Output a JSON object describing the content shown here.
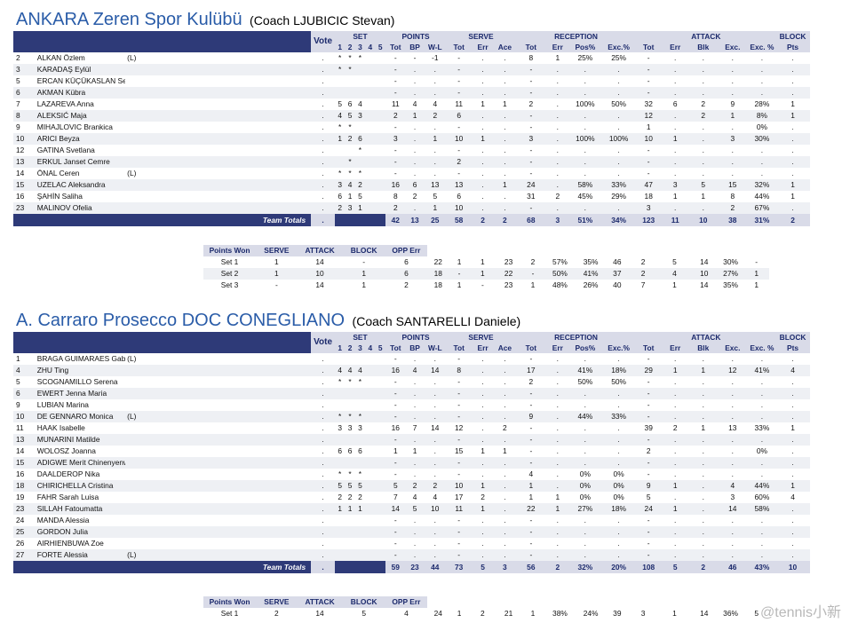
{
  "header_labels": {
    "vote": "Vote",
    "groups": [
      "SET",
      "POINTS",
      "SERVE",
      "RECEPTION",
      "ATTACK",
      "BLOCK"
    ],
    "sub": [
      "1",
      "2",
      "3",
      "4",
      "5",
      "Tot",
      "BP",
      "W-L",
      "Tot",
      "Err",
      "Ace",
      "Tot",
      "Err",
      "Pos%",
      "Exc.%",
      "Tot",
      "Err",
      "Blk",
      "Exc.",
      "Exc. %",
      "Pts"
    ],
    "team_totals": "Team Totals",
    "sets_header": [
      "Points Won",
      "SERVE",
      "ATTACK",
      "BLOCK",
      "OPP Err"
    ]
  },
  "teams": [
    {
      "name": "ANKARA Zeren Spor Kulübü",
      "coach": "(Coach LJUBICIC Stevan)",
      "players": [
        {
          "no": "2",
          "name": "ALKAN Özlem",
          "role": "(L)",
          "vote": ".",
          "c": [
            "*",
            "*",
            "*",
            "",
            "",
            "-",
            "-",
            "-1",
            "-",
            ".",
            ".",
            "8",
            "1",
            "25%",
            "25%",
            "-",
            ".",
            ".",
            ".",
            ".",
            "."
          ]
        },
        {
          "no": "3",
          "name": "KARADAŞ Eylül",
          "role": "",
          "vote": ".",
          "c": [
            "*",
            "*",
            "",
            "",
            "",
            "-",
            ".",
            ".",
            "-",
            ".",
            ".",
            "-",
            ".",
            ".",
            ".",
            "-",
            ".",
            ".",
            ".",
            ".",
            "."
          ]
        },
        {
          "no": "5",
          "name": "ERCAN KÜÇÜKASLAN Seyma",
          "role": "",
          "vote": ".",
          "c": [
            "",
            "",
            "",
            "",
            "",
            "-",
            ".",
            ".",
            "-",
            ".",
            ".",
            "-",
            ".",
            ".",
            ".",
            "-",
            ".",
            ".",
            ".",
            ".",
            "."
          ]
        },
        {
          "no": "6",
          "name": "AKMAN Kübra",
          "role": "",
          "vote": ".",
          "c": [
            "",
            "",
            "",
            "",
            "",
            "-",
            ".",
            ".",
            "-",
            ".",
            ".",
            "-",
            ".",
            ".",
            ".",
            "-",
            ".",
            ".",
            ".",
            ".",
            "."
          ]
        },
        {
          "no": "7",
          "name": "LAZAREVA Anna",
          "role": "",
          "vote": ".",
          "c": [
            "5",
            "6",
            "4",
            "",
            "",
            "11",
            "4",
            "4",
            "11",
            "1",
            "1",
            "2",
            ".",
            "100%",
            "50%",
            "32",
            "6",
            "2",
            "9",
            "28%",
            "1"
          ]
        },
        {
          "no": "8",
          "name": "ALEKSIĆ Maja",
          "role": "",
          "vote": ".",
          "c": [
            "4",
            "5",
            "3",
            "",
            "",
            "2",
            "1",
            "2",
            "6",
            ".",
            ".",
            "-",
            ".",
            ".",
            ".",
            "12",
            ".",
            "2",
            "1",
            "8%",
            "1"
          ]
        },
        {
          "no": "9",
          "name": "MIHAJLOVIC Brankica",
          "role": "",
          "vote": ".",
          "c": [
            "*",
            "*",
            "",
            "",
            "",
            "-",
            ".",
            ".",
            "-",
            ".",
            ".",
            "-",
            ".",
            ".",
            ".",
            "1",
            ".",
            ".",
            ".",
            "0%",
            "."
          ]
        },
        {
          "no": "10",
          "name": "ARICI Beyza",
          "role": "",
          "vote": ".",
          "c": [
            "1",
            "2",
            "6",
            "",
            "",
            "3",
            ".",
            "1",
            "10",
            "1",
            ".",
            "3",
            ".",
            "100%",
            "100%",
            "10",
            "1",
            ".",
            "3",
            "30%",
            "."
          ]
        },
        {
          "no": "12",
          "name": "GATINA Svetlana",
          "role": "",
          "vote": ".",
          "c": [
            "",
            "",
            "*",
            "",
            "",
            "-",
            ".",
            ".",
            "-",
            ".",
            ".",
            "-",
            ".",
            ".",
            ".",
            "-",
            ".",
            ".",
            ".",
            ".",
            "."
          ]
        },
        {
          "no": "13",
          "name": "ERKUL Janset Cemre",
          "role": "",
          "vote": ".",
          "c": [
            "",
            "*",
            "",
            "",
            "",
            "-",
            ".",
            ".",
            "2",
            ".",
            ".",
            "-",
            ".",
            ".",
            ".",
            "-",
            ".",
            ".",
            ".",
            ".",
            "."
          ]
        },
        {
          "no": "14",
          "name": "ÖNAL Ceren",
          "role": "(L)",
          "vote": ".",
          "c": [
            "*",
            "*",
            "*",
            "",
            "",
            "-",
            ".",
            ".",
            "-",
            ".",
            ".",
            "-",
            ".",
            ".",
            ".",
            "-",
            ".",
            ".",
            ".",
            ".",
            "."
          ]
        },
        {
          "no": "15",
          "name": "UZELAC Aleksandra",
          "role": "",
          "vote": ".",
          "c": [
            "3",
            "4",
            "2",
            "",
            "",
            "16",
            "6",
            "13",
            "13",
            ".",
            "1",
            "24",
            ".",
            "58%",
            "33%",
            "47",
            "3",
            "5",
            "15",
            "32%",
            "1"
          ]
        },
        {
          "no": "16",
          "name": "ŞAHİN Saliha",
          "role": "",
          "vote": ".",
          "c": [
            "6",
            "1",
            "5",
            "",
            "",
            "8",
            "2",
            "5",
            "6",
            ".",
            ".",
            "31",
            "2",
            "45%",
            "29%",
            "18",
            "1",
            "1",
            "8",
            "44%",
            "1"
          ]
        },
        {
          "no": "23",
          "name": "MALINOV Ofelia",
          "role": "",
          "vote": ".",
          "c": [
            "2",
            "3",
            "1",
            "",
            "",
            "2",
            ".",
            "1",
            "10",
            ".",
            ".",
            "-",
            ".",
            ".",
            ".",
            "3",
            ".",
            ".",
            "2",
            "67%",
            "."
          ]
        }
      ],
      "totals": [
        ".",
        "",
        "",
        "",
        "",
        "",
        "42",
        "13",
        "25",
        "58",
        "2",
        "2",
        "68",
        "3",
        "51%",
        "34%",
        "123",
        "11",
        "10",
        "38",
        "31%",
        "2"
      ],
      "sets": [
        {
          "label": "Set 1",
          "c": [
            "1",
            "14",
            "-",
            "6",
            "22",
            "1",
            "1",
            "23",
            "2",
            "57%",
            "35%",
            "46",
            "2",
            "5",
            "14",
            "30%",
            "-"
          ]
        },
        {
          "label": "Set 2",
          "c": [
            "1",
            "10",
            "1",
            "6",
            "18",
            "-",
            "1",
            "22",
            "-",
            "50%",
            "41%",
            "37",
            "2",
            "4",
            "10",
            "27%",
            "1"
          ]
        },
        {
          "label": "Set 3",
          "c": [
            "-",
            "14",
            "1",
            "2",
            "18",
            "1",
            "-",
            "23",
            "1",
            "48%",
            "26%",
            "40",
            "7",
            "1",
            "14",
            "35%",
            "1"
          ]
        }
      ]
    },
    {
      "name": "A. Carraro Prosecco DOC CONEGLIANO",
      "coach": "(Coach SANTARELLI Daniele)",
      "players": [
        {
          "no": "1",
          "name": "BRAGA GUIMARAES Gabriela",
          "role": "(L)",
          "vote": ".",
          "c": [
            "",
            "",
            "",
            "",
            "",
            "-",
            ".",
            ".",
            "-",
            ".",
            ".",
            "-",
            ".",
            ".",
            ".",
            "-",
            ".",
            ".",
            ".",
            ".",
            "."
          ]
        },
        {
          "no": "4",
          "name": "ZHU Ting",
          "role": "",
          "vote": ".",
          "c": [
            "4",
            "4",
            "4",
            "",
            "",
            "16",
            "4",
            "14",
            "8",
            ".",
            ".",
            "17",
            ".",
            "41%",
            "18%",
            "29",
            "1",
            "1",
            "12",
            "41%",
            "4"
          ]
        },
        {
          "no": "5",
          "name": "SCOGNAMILLO Serena",
          "role": "",
          "vote": ".",
          "c": [
            "*",
            "*",
            "*",
            "",
            "",
            "-",
            ".",
            ".",
            "-",
            ".",
            ".",
            "2",
            ".",
            "50%",
            "50%",
            "-",
            ".",
            ".",
            ".",
            ".",
            "."
          ]
        },
        {
          "no": "6",
          "name": "EWERT Jenna Maria",
          "role": "",
          "vote": ".",
          "c": [
            "",
            "",
            "",
            "",
            "",
            "-",
            ".",
            ".",
            "-",
            ".",
            ".",
            "-",
            ".",
            ".",
            ".",
            "-",
            ".",
            ".",
            ".",
            ".",
            "."
          ]
        },
        {
          "no": "9",
          "name": "LUBIAN Marina",
          "role": "",
          "vote": ".",
          "c": [
            "",
            "",
            "",
            "",
            "",
            "-",
            ".",
            ".",
            "-",
            ".",
            ".",
            "-",
            ".",
            ".",
            ".",
            "-",
            ".",
            ".",
            ".",
            ".",
            "."
          ]
        },
        {
          "no": "10",
          "name": "DE GENNARO Monica",
          "role": "(L)",
          "vote": ".",
          "c": [
            "*",
            "*",
            "*",
            "",
            "",
            "-",
            ".",
            ".",
            "-",
            ".",
            ".",
            "9",
            ".",
            "44%",
            "33%",
            "-",
            ".",
            ".",
            ".",
            ".",
            "."
          ]
        },
        {
          "no": "11",
          "name": "HAAK Isabelle",
          "role": "",
          "vote": ".",
          "c": [
            "3",
            "3",
            "3",
            "",
            "",
            "16",
            "7",
            "14",
            "12",
            ".",
            "2",
            "-",
            ".",
            ".",
            ".",
            "39",
            "2",
            "1",
            "13",
            "33%",
            "1"
          ]
        },
        {
          "no": "13",
          "name": "MUNARINI Matilde",
          "role": "",
          "vote": ".",
          "c": [
            "",
            "",
            "",
            "",
            "",
            "-",
            ".",
            ".",
            "-",
            ".",
            ".",
            "-",
            ".",
            ".",
            ".",
            "-",
            ".",
            ".",
            ".",
            ".",
            "."
          ]
        },
        {
          "no": "14",
          "name": "WOLOSZ Joanna",
          "role": "",
          "vote": ".",
          "c": [
            "6",
            "6",
            "6",
            "",
            "",
            "1",
            "1",
            ".",
            "15",
            "1",
            "1",
            "-",
            ".",
            ".",
            ".",
            "2",
            ".",
            ".",
            ".",
            "0%",
            "."
          ]
        },
        {
          "no": "15",
          "name": "ADIGWE Merit Chinenyenwa",
          "role": "",
          "vote": ".",
          "c": [
            "",
            "",
            "",
            "",
            "",
            "-",
            ".",
            ".",
            "-",
            ".",
            ".",
            "-",
            ".",
            ".",
            ".",
            "-",
            ".",
            ".",
            ".",
            ".",
            "."
          ]
        },
        {
          "no": "16",
          "name": "DAALDEROP Nika",
          "role": "",
          "vote": ".",
          "c": [
            "*",
            "*",
            "*",
            "",
            "",
            "-",
            ".",
            ".",
            "-",
            ".",
            ".",
            "4",
            ".",
            "0%",
            "0%",
            "-",
            ".",
            ".",
            ".",
            ".",
            "."
          ]
        },
        {
          "no": "18",
          "name": "CHIRICHELLA Cristina",
          "role": "",
          "vote": ".",
          "c": [
            "5",
            "5",
            "5",
            "",
            "",
            "5",
            "2",
            "2",
            "10",
            "1",
            ".",
            "1",
            ".",
            "0%",
            "0%",
            "9",
            "1",
            ".",
            "4",
            "44%",
            "1"
          ]
        },
        {
          "no": "19",
          "name": "FAHR Sarah Luisa",
          "role": "",
          "vote": ".",
          "c": [
            "2",
            "2",
            "2",
            "",
            "",
            "7",
            "4",
            "4",
            "17",
            "2",
            ".",
            "1",
            "1",
            "0%",
            "0%",
            "5",
            ".",
            ".",
            "3",
            "60%",
            "4"
          ]
        },
        {
          "no": "23",
          "name": "SILLAH Fatoumatta",
          "role": "",
          "vote": ".",
          "c": [
            "1",
            "1",
            "1",
            "",
            "",
            "14",
            "5",
            "10",
            "11",
            "1",
            ".",
            "22",
            "1",
            "27%",
            "18%",
            "24",
            "1",
            ".",
            "14",
            "58%",
            "."
          ]
        },
        {
          "no": "24",
          "name": "MANDA Alessia",
          "role": "",
          "vote": ".",
          "c": [
            "",
            "",
            "",
            "",
            "",
            "-",
            ".",
            ".",
            "-",
            ".",
            ".",
            "-",
            ".",
            ".",
            ".",
            "-",
            ".",
            ".",
            ".",
            ".",
            "."
          ]
        },
        {
          "no": "25",
          "name": "GORDON Julia",
          "role": "",
          "vote": ".",
          "c": [
            "",
            "",
            "",
            "",
            "",
            "-",
            ".",
            ".",
            "-",
            ".",
            ".",
            "-",
            ".",
            ".",
            ".",
            "-",
            ".",
            ".",
            ".",
            ".",
            "."
          ]
        },
        {
          "no": "26",
          "name": "AIRHIENBUWA Zoe",
          "role": "",
          "vote": ".",
          "c": [
            "",
            "",
            "",
            "",
            "",
            "-",
            ".",
            ".",
            "-",
            ".",
            ".",
            "-",
            ".",
            ".",
            ".",
            "-",
            ".",
            ".",
            ".",
            ".",
            "."
          ]
        },
        {
          "no": "27",
          "name": "FORTE Alessia",
          "role": "(L)",
          "vote": ".",
          "c": [
            "",
            "",
            "",
            "",
            "",
            "-",
            ".",
            ".",
            "-",
            ".",
            ".",
            "-",
            ".",
            ".",
            ".",
            "-",
            ".",
            ".",
            ".",
            ".",
            "."
          ]
        }
      ],
      "totals": [
        ".",
        "",
        "",
        "",
        "",
        "",
        "59",
        "23",
        "44",
        "73",
        "5",
        "3",
        "56",
        "2",
        "32%",
        "20%",
        "108",
        "5",
        "2",
        "46",
        "43%",
        "10"
      ],
      "sets": [
        {
          "label": "Set 1",
          "c": [
            "2",
            "14",
            "5",
            "4",
            "24",
            "1",
            "2",
            "21",
            "1",
            "38%",
            "24%",
            "39",
            "3",
            "1",
            "14",
            "36%",
            "5"
          ]
        }
      ]
    }
  ],
  "watermark": "@tennis小新"
}
